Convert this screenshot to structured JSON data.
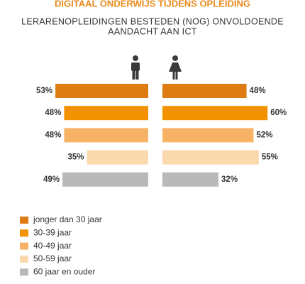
{
  "chart_data": {
    "type": "butterfly",
    "title": "DIGITAAL ONDERWIJS TIJDENS OPLEIDING",
    "subtitle": [
      "LERARENOPLEIDINGEN BESTEDEN (NOG) ONVOLDOENDE",
      "AANDACHT AAN ICT"
    ],
    "categories": [
      "jonger dan 30 jaar",
      "30-39 jaar",
      "40-49 jaar",
      "50-59 jaar",
      "60 jaar en ouder"
    ],
    "colors": [
      "#de7b12",
      "#f39200",
      "#f6b366",
      "#fbd9ae",
      "#b9b9b9"
    ],
    "series": [
      {
        "values": [
          53,
          48,
          48,
          35,
          49
        ],
        "value_labels": [
          "53%",
          "48%",
          "48%",
          "35%",
          "49%"
        ]
      },
      {
        "values": [
          48,
          60,
          52,
          55,
          32
        ],
        "value_labels": [
          "48%",
          "60%",
          "52%",
          "55%",
          "32%"
        ]
      }
    ]
  }
}
